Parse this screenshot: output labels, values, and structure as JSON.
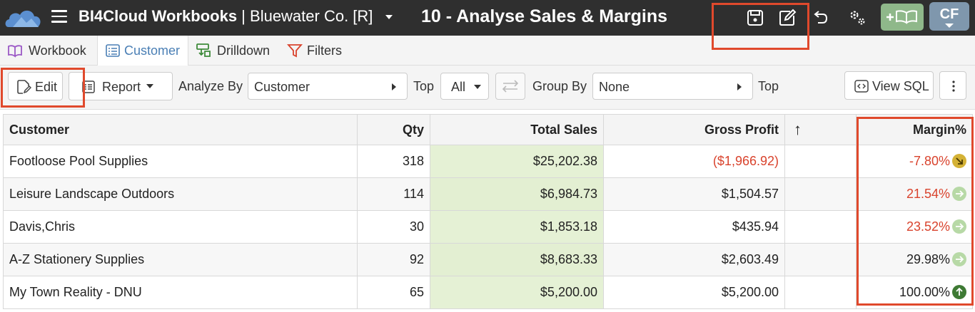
{
  "header": {
    "app_name": "BI4Cloud Workbooks",
    "separator": " | ",
    "company": "Bluewater Co. [R]",
    "report_title": "10 - Analyse Sales & Margins",
    "avatar_initials": "CF"
  },
  "tabs": [
    {
      "label": "Workbook",
      "icon": "book-open-icon",
      "active": false
    },
    {
      "label": "Customer",
      "icon": "list-icon",
      "active": true
    },
    {
      "label": "Drilldown",
      "icon": "drilldown-icon",
      "active": false
    },
    {
      "label": "Filters",
      "icon": "funnel-icon",
      "active": false
    }
  ],
  "toolbar": {
    "edit_label": "Edit",
    "report_label": "Report",
    "analyze_by_label": "Analyze By",
    "analyze_by_value": "Customer",
    "top_label": "Top",
    "top_value": "All",
    "group_by_label": "Group By",
    "group_by_value": "None",
    "top2_label": "Top",
    "view_sql_label": "View SQL"
  },
  "table": {
    "columns": [
      "Customer",
      "Qty",
      "Total Sales",
      "Gross Profit",
      "↑",
      "Margin%"
    ],
    "rows": [
      {
        "customer": "Footloose Pool Supplies",
        "qty": "318",
        "total_sales": "$25,202.38",
        "gross_profit": "($1,966.92)",
        "margin": "-7.80%",
        "margin_negative": true,
        "profit_negative": true,
        "trend": "down-right",
        "trend_color": "#d4b236"
      },
      {
        "customer": "Leisure Landscape Outdoors",
        "qty": "114",
        "total_sales": "$6,984.73",
        "gross_profit": "$1,504.57",
        "margin": "21.54%",
        "margin_negative": true,
        "profit_negative": false,
        "trend": "right",
        "trend_color": "#b7d9a6"
      },
      {
        "customer": "Davis,Chris",
        "qty": "30",
        "total_sales": "$1,853.18",
        "gross_profit": "$435.94",
        "margin": "23.52%",
        "margin_negative": true,
        "profit_negative": false,
        "trend": "right",
        "trend_color": "#b7d9a6"
      },
      {
        "customer": "A-Z Stationery Supplies",
        "qty": "92",
        "total_sales": "$8,683.33",
        "gross_profit": "$2,603.49",
        "margin": "29.98%",
        "margin_negative": false,
        "profit_negative": false,
        "trend": "right",
        "trend_color": "#b7d9a6"
      },
      {
        "customer": "My Town Reality - DNU",
        "qty": "65",
        "total_sales": "$5,200.00",
        "gross_profit": "$5,200.00",
        "margin": "100.00%",
        "margin_negative": false,
        "profit_negative": false,
        "trend": "up",
        "trend_color": "#3e7a34"
      }
    ]
  },
  "colors": {
    "header_bg": "#2f2f2f",
    "accent_blue": "#4a7fb5",
    "add_button": "#8fb88a",
    "avatar": "#7f97ad",
    "sales_cell": "#e5f1d5",
    "negative": "#d9432d",
    "annotation": "#e0492c"
  }
}
